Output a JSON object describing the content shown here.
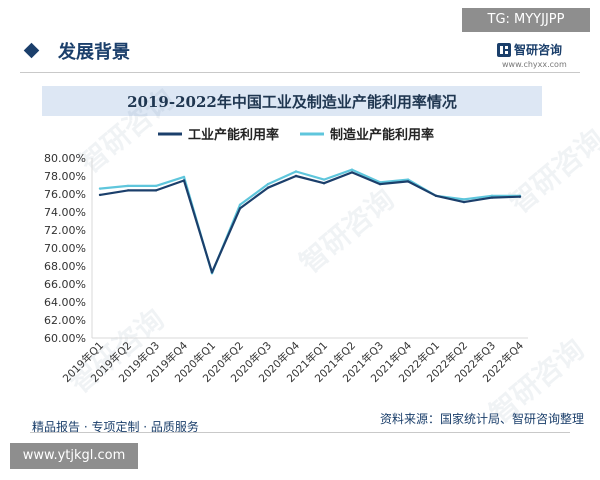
{
  "tag": "TG: MYYJJPP",
  "section_title": "发展背景",
  "brand": {
    "name": "智研咨询",
    "url": "www.chyxx.com"
  },
  "footer_left": "精品报告 · 专项定制 · 品质服务",
  "source": "资料来源：国家统计局、智研咨询整理",
  "url_badge": "www.ytjkgl.com",
  "colors": {
    "industrial": "#1b3f6b",
    "manufacturing": "#5fc6dc",
    "title_band": "#dde7f4"
  },
  "chart_data": {
    "type": "line",
    "title": "2019-2022年中国工业及制造业产能利用率情况",
    "categories": [
      "2019年Q1",
      "2019年Q2",
      "2019年Q3",
      "2019年Q4",
      "2020年Q1",
      "2020年Q2",
      "2020年Q3",
      "2020年Q4",
      "2021年Q1",
      "2021年Q2",
      "2021年Q3",
      "2021年Q4",
      "2022年Q1",
      "2022年Q2",
      "2022年Q3",
      "2022年Q4"
    ],
    "series": [
      {
        "name": "工业产能利用率",
        "values": [
          75.9,
          76.4,
          76.4,
          77.5,
          67.3,
          74.4,
          76.7,
          78.0,
          77.2,
          78.4,
          77.1,
          77.4,
          75.8,
          75.1,
          75.6,
          75.7
        ]
      },
      {
        "name": "制造业产能利用率",
        "values": [
          76.6,
          76.9,
          76.9,
          77.9,
          67.2,
          74.8,
          77.1,
          78.5,
          77.6,
          78.7,
          77.3,
          77.6,
          75.8,
          75.4,
          75.8,
          75.8
        ]
      }
    ],
    "yticks": [
      "60.00%",
      "62.00%",
      "64.00%",
      "66.00%",
      "68.00%",
      "70.00%",
      "72.00%",
      "74.00%",
      "76.00%",
      "78.00%",
      "80.00%"
    ],
    "ylim": [
      60,
      80
    ],
    "grid": false,
    "legend": "top-center"
  }
}
